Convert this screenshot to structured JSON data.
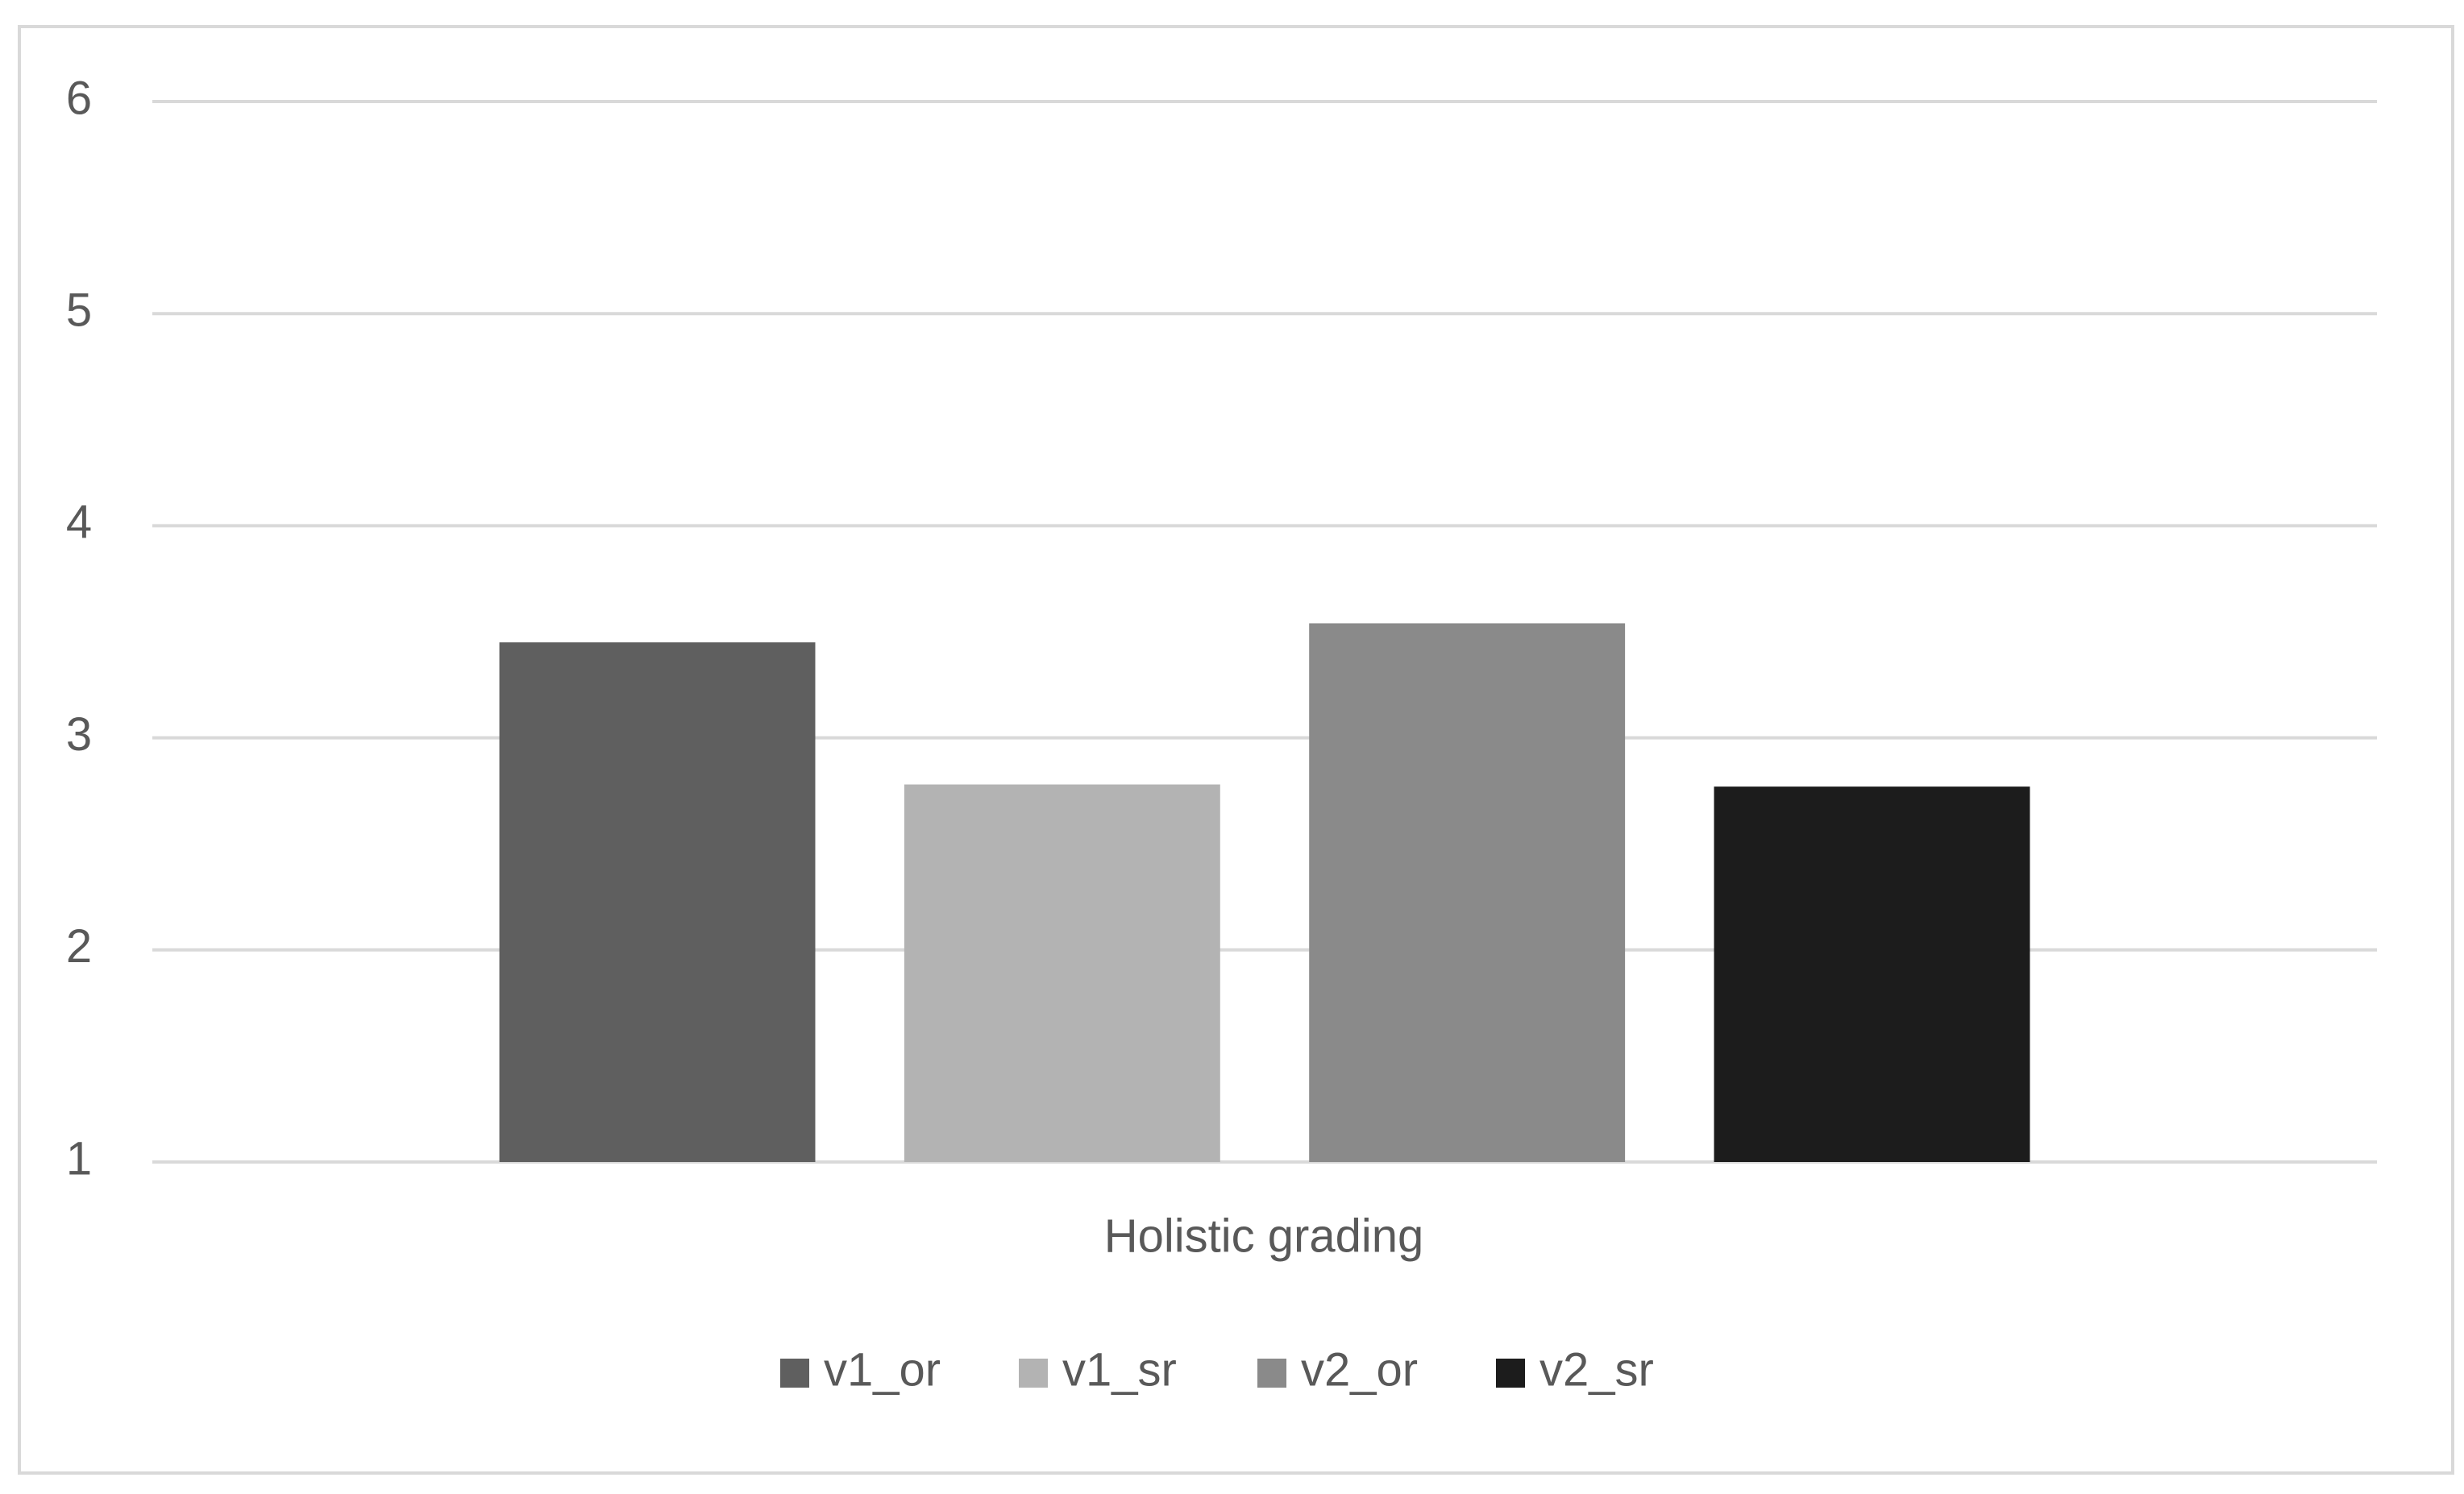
{
  "chart_data": {
    "type": "bar",
    "categories": [
      "Holistic grading"
    ],
    "series": [
      {
        "name": "v1_or",
        "color": "#5f5f5f",
        "values": [
          3.45
        ]
      },
      {
        "name": "v1_sr",
        "color": "#b3b3b3",
        "values": [
          2.78
        ]
      },
      {
        "name": "v2_or",
        "color": "#8a8a8a",
        "values": [
          3.54
        ]
      },
      {
        "name": "v2_sr",
        "color": "#1c1c1c",
        "values": [
          2.77
        ]
      }
    ],
    "ylim": [
      1,
      6
    ],
    "yticks": [
      1,
      2,
      3,
      4,
      5,
      6
    ],
    "grid": true,
    "legend": "bottom"
  }
}
